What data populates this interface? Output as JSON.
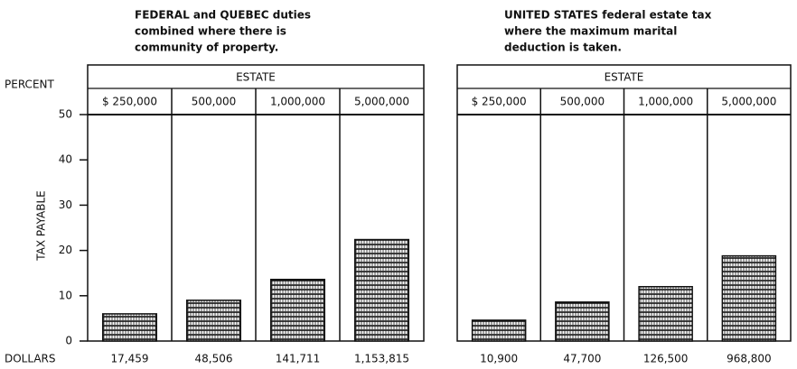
{
  "chart_data": {
    "type": "bar",
    "y_unit_label": "PERCENT",
    "ylabel": "TAX PAYABLE",
    "x_unit_label": "DOLLARS",
    "ylim": [
      0,
      50
    ],
    "yticks": [
      0,
      10,
      20,
      30,
      40,
      50
    ],
    "color": "#111111",
    "panels": [
      {
        "title": [
          "FEDERAL and QUEBEC duties",
          "combined where there is",
          "community of property."
        ],
        "group_label": "ESTATE",
        "categories": [
          "$ 250,000",
          "500,000",
          "1,000,000",
          "5,000,000"
        ],
        "values": [
          6,
          9,
          13.6,
          22.4
        ],
        "dollar_labels": [
          "17,459",
          "48,506",
          "141,711",
          "1,153,815"
        ]
      },
      {
        "title": [
          "UNITED STATES federal estate tax",
          "where the maximum marital",
          "deduction is taken."
        ],
        "group_label": "ESTATE",
        "categories": [
          "$ 250,000",
          "500,000",
          "1,000,000",
          "5,000,000"
        ],
        "values": [
          4.6,
          8.6,
          12,
          18.8
        ],
        "dollar_labels": [
          "10,900",
          "47,700",
          "126,500",
          "968,800"
        ]
      }
    ]
  }
}
